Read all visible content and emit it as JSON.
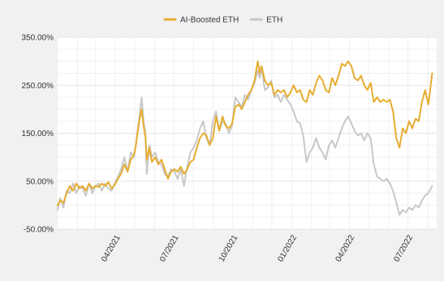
{
  "chart_data": {
    "type": "line",
    "title": "",
    "xlabel": "",
    "ylabel": "",
    "x_range": [
      "2021-01-01",
      "2022-08-15"
    ],
    "ylim": [
      -50,
      350
    ],
    "y_ticks": [
      -50,
      50,
      150,
      250,
      350
    ],
    "y_tick_labels": [
      "-50.00%",
      "50.00%",
      "150.00%",
      "250.00%",
      "350.00%"
    ],
    "x_ticks": [
      "2021-04-01",
      "2021-07-01",
      "2021-10-01",
      "2022-01-01",
      "2022-04-01",
      "2022-07-01"
    ],
    "x_tick_labels": [
      "04/2021",
      "07/2021",
      "10/2021",
      "01/2022",
      "04/2022",
      "07/2022"
    ],
    "grid": true,
    "legend_position": "top-center",
    "series": [
      {
        "name": "AI-Boosted ETH",
        "color": "#e6ad2f",
        "points": [
          [
            "2021-01-01",
            0
          ],
          [
            "2021-01-05",
            10
          ],
          [
            "2021-01-10",
            5
          ],
          [
            "2021-01-15",
            25
          ],
          [
            "2021-01-20",
            40
          ],
          [
            "2021-01-25",
            30
          ],
          [
            "2021-01-30",
            45
          ],
          [
            "2021-02-04",
            35
          ],
          [
            "2021-02-09",
            40
          ],
          [
            "2021-02-14",
            30
          ],
          [
            "2021-02-19",
            45
          ],
          [
            "2021-02-24",
            35
          ],
          [
            "2021-03-01",
            40
          ],
          [
            "2021-03-06",
            38
          ],
          [
            "2021-03-11",
            45
          ],
          [
            "2021-03-16",
            40
          ],
          [
            "2021-03-21",
            48
          ],
          [
            "2021-03-26",
            35
          ],
          [
            "2021-03-31",
            42
          ],
          [
            "2021-04-05",
            55
          ],
          [
            "2021-04-10",
            65
          ],
          [
            "2021-04-15",
            85
          ],
          [
            "2021-04-20",
            70
          ],
          [
            "2021-04-25",
            95
          ],
          [
            "2021-04-30",
            105
          ],
          [
            "2021-05-03",
            125
          ],
          [
            "2021-05-06",
            155
          ],
          [
            "2021-05-09",
            180
          ],
          [
            "2021-05-12",
            200
          ],
          [
            "2021-05-15",
            165
          ],
          [
            "2021-05-18",
            140
          ],
          [
            "2021-05-20",
            95
          ],
          [
            "2021-05-24",
            120
          ],
          [
            "2021-05-28",
            90
          ],
          [
            "2021-06-02",
            100
          ],
          [
            "2021-06-07",
            85
          ],
          [
            "2021-06-12",
            95
          ],
          [
            "2021-06-17",
            75
          ],
          [
            "2021-06-22",
            55
          ],
          [
            "2021-06-27",
            70
          ],
          [
            "2021-07-02",
            75
          ],
          [
            "2021-07-07",
            70
          ],
          [
            "2021-07-12",
            80
          ],
          [
            "2021-07-17",
            65
          ],
          [
            "2021-07-22",
            75
          ],
          [
            "2021-07-27",
            90
          ],
          [
            "2021-08-01",
            95
          ],
          [
            "2021-08-06",
            120
          ],
          [
            "2021-08-11",
            140
          ],
          [
            "2021-08-16",
            150
          ],
          [
            "2021-08-21",
            145
          ],
          [
            "2021-08-26",
            125
          ],
          [
            "2021-08-31",
            140
          ],
          [
            "2021-09-05",
            185
          ],
          [
            "2021-09-10",
            155
          ],
          [
            "2021-09-15",
            185
          ],
          [
            "2021-09-20",
            165
          ],
          [
            "2021-09-25",
            160
          ],
          [
            "2021-09-30",
            170
          ],
          [
            "2021-10-05",
            205
          ],
          [
            "2021-10-10",
            210
          ],
          [
            "2021-10-15",
            200
          ],
          [
            "2021-10-20",
            215
          ],
          [
            "2021-10-25",
            230
          ],
          [
            "2021-10-30",
            240
          ],
          [
            "2021-11-04",
            260
          ],
          [
            "2021-11-09",
            300
          ],
          [
            "2021-11-12",
            275
          ],
          [
            "2021-11-15",
            290
          ],
          [
            "2021-11-20",
            260
          ],
          [
            "2021-11-25",
            250
          ],
          [
            "2021-11-30",
            255
          ],
          [
            "2021-12-05",
            230
          ],
          [
            "2021-12-10",
            240
          ],
          [
            "2021-12-15",
            235
          ],
          [
            "2021-12-20",
            240
          ],
          [
            "2021-12-25",
            225
          ],
          [
            "2021-12-30",
            235
          ],
          [
            "2022-01-04",
            250
          ],
          [
            "2022-01-09",
            235
          ],
          [
            "2022-01-14",
            240
          ],
          [
            "2022-01-19",
            220
          ],
          [
            "2022-01-24",
            215
          ],
          [
            "2022-01-29",
            240
          ],
          [
            "2022-02-03",
            230
          ],
          [
            "2022-02-08",
            255
          ],
          [
            "2022-02-13",
            270
          ],
          [
            "2022-02-18",
            260
          ],
          [
            "2022-02-23",
            240
          ],
          [
            "2022-02-28",
            235
          ],
          [
            "2022-03-05",
            265
          ],
          [
            "2022-03-10",
            250
          ],
          [
            "2022-03-15",
            270
          ],
          [
            "2022-03-20",
            295
          ],
          [
            "2022-03-25",
            290
          ],
          [
            "2022-03-30",
            300
          ],
          [
            "2022-04-04",
            290
          ],
          [
            "2022-04-09",
            265
          ],
          [
            "2022-04-14",
            260
          ],
          [
            "2022-04-19",
            270
          ],
          [
            "2022-04-24",
            250
          ],
          [
            "2022-04-29",
            240
          ],
          [
            "2022-05-04",
            255
          ],
          [
            "2022-05-09",
            215
          ],
          [
            "2022-05-14",
            225
          ],
          [
            "2022-05-19",
            215
          ],
          [
            "2022-05-24",
            220
          ],
          [
            "2022-05-29",
            215
          ],
          [
            "2022-06-03",
            220
          ],
          [
            "2022-06-08",
            195
          ],
          [
            "2022-06-13",
            140
          ],
          [
            "2022-06-18",
            120
          ],
          [
            "2022-06-23",
            160
          ],
          [
            "2022-06-28",
            150
          ],
          [
            "2022-07-03",
            175
          ],
          [
            "2022-07-08",
            160
          ],
          [
            "2022-07-13",
            180
          ],
          [
            "2022-07-18",
            175
          ],
          [
            "2022-07-23",
            215
          ],
          [
            "2022-07-28",
            240
          ],
          [
            "2022-08-02",
            210
          ],
          [
            "2022-08-08",
            275
          ]
        ]
      },
      {
        "name": "ETH",
        "color": "#c8c8c8",
        "points": [
          [
            "2021-01-01",
            -10
          ],
          [
            "2021-01-05",
            15
          ],
          [
            "2021-01-10",
            -5
          ],
          [
            "2021-01-15",
            30
          ],
          [
            "2021-01-20",
            25
          ],
          [
            "2021-01-25",
            45
          ],
          [
            "2021-01-30",
            25
          ],
          [
            "2021-02-04",
            40
          ],
          [
            "2021-02-09",
            35
          ],
          [
            "2021-02-14",
            20
          ],
          [
            "2021-02-19",
            45
          ],
          [
            "2021-02-24",
            25
          ],
          [
            "2021-03-01",
            40
          ],
          [
            "2021-03-06",
            45
          ],
          [
            "2021-03-11",
            30
          ],
          [
            "2021-03-16",
            45
          ],
          [
            "2021-03-21",
            35
          ],
          [
            "2021-03-26",
            30
          ],
          [
            "2021-03-31",
            45
          ],
          [
            "2021-04-05",
            60
          ],
          [
            "2021-04-10",
            75
          ],
          [
            "2021-04-15",
            100
          ],
          [
            "2021-04-20",
            70
          ],
          [
            "2021-04-25",
            110
          ],
          [
            "2021-04-30",
            100
          ],
          [
            "2021-05-03",
            125
          ],
          [
            "2021-05-06",
            160
          ],
          [
            "2021-05-09",
            190
          ],
          [
            "2021-05-12",
            225
          ],
          [
            "2021-05-15",
            175
          ],
          [
            "2021-05-18",
            150
          ],
          [
            "2021-05-20",
            65
          ],
          [
            "2021-05-24",
            125
          ],
          [
            "2021-05-28",
            100
          ],
          [
            "2021-06-02",
            110
          ],
          [
            "2021-06-07",
            90
          ],
          [
            "2021-06-12",
            85
          ],
          [
            "2021-06-17",
            65
          ],
          [
            "2021-06-22",
            60
          ],
          [
            "2021-06-27",
            75
          ],
          [
            "2021-07-02",
            70
          ],
          [
            "2021-07-07",
            55
          ],
          [
            "2021-07-12",
            75
          ],
          [
            "2021-07-17",
            40
          ],
          [
            "2021-07-22",
            80
          ],
          [
            "2021-07-27",
            110
          ],
          [
            "2021-08-01",
            120
          ],
          [
            "2021-08-06",
            135
          ],
          [
            "2021-08-11",
            160
          ],
          [
            "2021-08-16",
            175
          ],
          [
            "2021-08-21",
            140
          ],
          [
            "2021-08-26",
            125
          ],
          [
            "2021-08-31",
            175
          ],
          [
            "2021-09-05",
            195
          ],
          [
            "2021-09-10",
            155
          ],
          [
            "2021-09-15",
            175
          ],
          [
            "2021-09-20",
            170
          ],
          [
            "2021-09-25",
            150
          ],
          [
            "2021-09-30",
            165
          ],
          [
            "2021-10-05",
            225
          ],
          [
            "2021-10-10",
            215
          ],
          [
            "2021-10-15",
            205
          ],
          [
            "2021-10-20",
            230
          ],
          [
            "2021-10-25",
            220
          ],
          [
            "2021-10-30",
            240
          ],
          [
            "2021-11-04",
            255
          ],
          [
            "2021-11-09",
            280
          ],
          [
            "2021-11-12",
            265
          ],
          [
            "2021-11-15",
            285
          ],
          [
            "2021-11-20",
            240
          ],
          [
            "2021-11-25",
            245
          ],
          [
            "2021-11-30",
            260
          ],
          [
            "2021-12-05",
            225
          ],
          [
            "2021-12-10",
            230
          ],
          [
            "2021-12-15",
            215
          ],
          [
            "2021-12-20",
            230
          ],
          [
            "2021-12-25",
            220
          ],
          [
            "2021-12-30",
            210
          ],
          [
            "2022-01-04",
            195
          ],
          [
            "2022-01-09",
            175
          ],
          [
            "2022-01-14",
            170
          ],
          [
            "2022-01-19",
            145
          ],
          [
            "2022-01-24",
            90
          ],
          [
            "2022-01-29",
            110
          ],
          [
            "2022-02-03",
            120
          ],
          [
            "2022-02-08",
            140
          ],
          [
            "2022-02-13",
            120
          ],
          [
            "2022-02-18",
            110
          ],
          [
            "2022-02-23",
            95
          ],
          [
            "2022-02-28",
            125
          ],
          [
            "2022-03-05",
            135
          ],
          [
            "2022-03-10",
            120
          ],
          [
            "2022-03-15",
            140
          ],
          [
            "2022-03-20",
            160
          ],
          [
            "2022-03-25",
            175
          ],
          [
            "2022-03-30",
            185
          ],
          [
            "2022-04-04",
            170
          ],
          [
            "2022-04-09",
            155
          ],
          [
            "2022-04-14",
            145
          ],
          [
            "2022-04-19",
            150
          ],
          [
            "2022-04-24",
            135
          ],
          [
            "2022-04-29",
            150
          ],
          [
            "2022-05-04",
            140
          ],
          [
            "2022-05-09",
            85
          ],
          [
            "2022-05-14",
            60
          ],
          [
            "2022-05-19",
            55
          ],
          [
            "2022-05-24",
            50
          ],
          [
            "2022-05-29",
            55
          ],
          [
            "2022-06-03",
            45
          ],
          [
            "2022-06-08",
            30
          ],
          [
            "2022-06-13",
            5
          ],
          [
            "2022-06-18",
            -20
          ],
          [
            "2022-06-23",
            -10
          ],
          [
            "2022-06-28",
            -15
          ],
          [
            "2022-07-03",
            -5
          ],
          [
            "2022-07-08",
            -10
          ],
          [
            "2022-07-13",
            0
          ],
          [
            "2022-07-18",
            -5
          ],
          [
            "2022-07-23",
            10
          ],
          [
            "2022-07-28",
            20
          ],
          [
            "2022-08-02",
            25
          ],
          [
            "2022-08-08",
            40
          ]
        ]
      }
    ]
  }
}
